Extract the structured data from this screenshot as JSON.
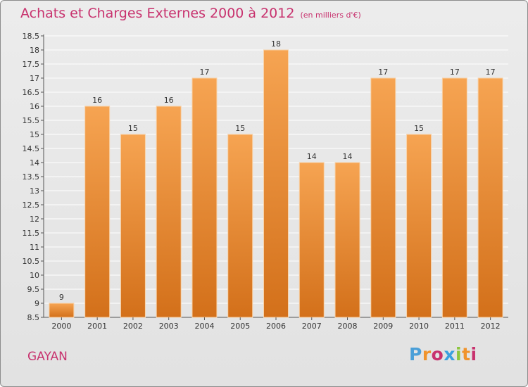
{
  "header": {
    "title": "Achats et Charges Externes 2000 à 2012",
    "unit": "(en milliers d'€)"
  },
  "footer": {
    "city": "GAYAN",
    "logo": {
      "letters": [
        "P",
        "r",
        "o",
        "x",
        "i",
        "t",
        "i"
      ],
      "colors": [
        "#4a9fd8",
        "#f0932b",
        "#c8326e",
        "#3aa0e0",
        "#8cc63e",
        "#f0932b",
        "#c8326e"
      ]
    }
  },
  "colors": {
    "bar_top": "#f6a452",
    "bar_bottom": "#d3701a",
    "bar_outline": "#f8d2a8",
    "title": "#c8326e",
    "grid": "#ffffff"
  },
  "chart_data": {
    "type": "bar",
    "categories": [
      "2000",
      "2001",
      "2002",
      "2003",
      "2004",
      "2005",
      "2006",
      "2007",
      "2008",
      "2009",
      "2010",
      "2011",
      "2012"
    ],
    "values": [
      9,
      16,
      15,
      16,
      17,
      15,
      18,
      14,
      14,
      17,
      15,
      17,
      17
    ],
    "data_labels": [
      "9",
      "16",
      "15",
      "16",
      "17",
      "15",
      "18",
      "14",
      "14",
      "17",
      "15",
      "17",
      "17"
    ],
    "yticks": [
      8.5,
      9,
      9.5,
      10,
      10.5,
      11,
      11.5,
      12,
      12.5,
      13,
      13.5,
      14,
      14.5,
      15,
      15.5,
      16,
      16.5,
      17,
      17.5,
      18,
      18.5
    ],
    "ytick_labels": [
      "8.5",
      "9",
      "9.5",
      "10",
      "10.5",
      "11",
      "11.5",
      "12",
      "12.5",
      "13",
      "13.5",
      "14",
      "14.5",
      "15",
      "15.5",
      "16",
      "16.5",
      "17",
      "17.5",
      "18",
      "18.5"
    ],
    "ylim": [
      8.5,
      18.5
    ],
    "grid": true
  }
}
